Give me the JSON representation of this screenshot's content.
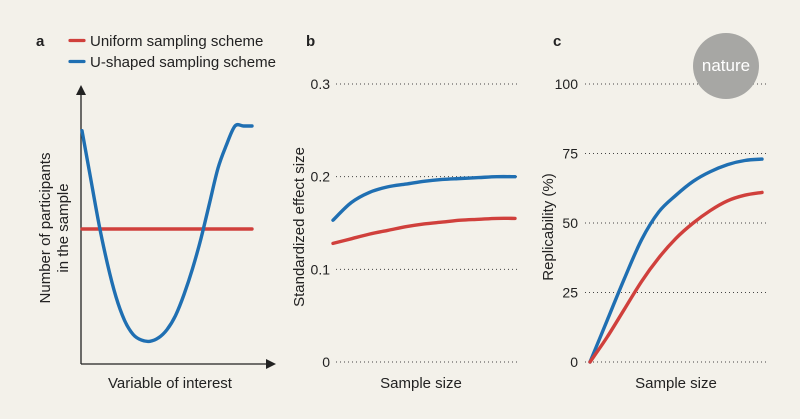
{
  "colors": {
    "uniform": "#d0403c",
    "ushaped": "#1f6fb2",
    "badge": "#a7a7a4",
    "background": "#f3f1ea"
  },
  "badge": {
    "text": "nature"
  },
  "chart_data": [
    {
      "panel": "a",
      "type": "line",
      "xlabel": "Variable of interest",
      "ylabel": [
        "Number of participants",
        "in the sample"
      ],
      "legend": [
        "Uniform sampling scheme",
        "U-shaped sampling scheme"
      ],
      "xlim": [
        0,
        1
      ],
      "ylim": [
        0,
        1
      ],
      "series": [
        {
          "name": "Uniform sampling scheme",
          "color_key": "uniform",
          "x": [
            0,
            1
          ],
          "y": [
            0.5,
            0.5
          ]
        },
        {
          "name": "U-shaped sampling scheme",
          "color_key": "ushaped",
          "x": [
            0,
            0.05,
            0.1,
            0.15,
            0.2,
            0.25,
            0.3,
            0.35,
            0.4,
            0.45,
            0.5,
            0.55,
            0.6,
            0.65,
            0.7,
            0.75,
            0.8,
            0.85,
            0.9,
            0.95,
            1.0
          ],
          "y": [
            0.92,
            0.72,
            0.52,
            0.35,
            0.21,
            0.11,
            0.05,
            0.025,
            0.02,
            0.035,
            0.07,
            0.13,
            0.22,
            0.33,
            0.46,
            0.61,
            0.76,
            0.86,
            0.94,
            0.94,
            0.94
          ]
        }
      ]
    },
    {
      "panel": "b",
      "type": "line",
      "xlabel": "Sample size",
      "ylabel": "Standardized effect size",
      "yticks": [
        0,
        0.1,
        0.2,
        0.3
      ],
      "yticklabels": [
        "0",
        "0.1",
        "0.2",
        "0.3"
      ],
      "ylim": [
        0,
        0.3
      ],
      "xlim": [
        0,
        1
      ],
      "series": [
        {
          "name": "U-shaped sampling scheme",
          "color_key": "ushaped",
          "x": [
            0,
            0.1,
            0.2,
            0.3,
            0.4,
            0.5,
            0.6,
            0.7,
            0.8,
            0.9,
            1.0
          ],
          "y": [
            0.153,
            0.172,
            0.183,
            0.189,
            0.192,
            0.195,
            0.197,
            0.198,
            0.199,
            0.2,
            0.2
          ]
        },
        {
          "name": "Uniform sampling scheme",
          "color_key": "uniform",
          "x": [
            0,
            0.1,
            0.2,
            0.3,
            0.4,
            0.5,
            0.6,
            0.7,
            0.8,
            0.9,
            1.0
          ],
          "y": [
            0.128,
            0.133,
            0.138,
            0.142,
            0.146,
            0.149,
            0.151,
            0.153,
            0.154,
            0.155,
            0.155
          ]
        }
      ]
    },
    {
      "panel": "c",
      "type": "line",
      "xlabel": "Sample size",
      "ylabel": "Replicability (%)",
      "yticks": [
        0,
        25,
        50,
        75,
        100
      ],
      "yticklabels": [
        "0",
        "25",
        "50",
        "75",
        "100"
      ],
      "ylim": [
        0,
        100
      ],
      "xlim": [
        0,
        1
      ],
      "series": [
        {
          "name": "U-shaped sampling scheme",
          "color_key": "ushaped",
          "x": [
            0,
            0.1,
            0.2,
            0.3,
            0.4,
            0.5,
            0.6,
            0.7,
            0.8,
            0.9,
            1.0
          ],
          "y": [
            0,
            15,
            30,
            44,
            54,
            60,
            65,
            68.5,
            71,
            72.5,
            73
          ]
        },
        {
          "name": "Uniform sampling scheme",
          "color_key": "uniform",
          "x": [
            0,
            0.1,
            0.2,
            0.3,
            0.4,
            0.5,
            0.6,
            0.7,
            0.8,
            0.9,
            1.0
          ],
          "y": [
            0,
            9,
            19,
            29,
            37.5,
            44.5,
            50,
            54.5,
            58,
            60,
            61
          ]
        }
      ]
    }
  ]
}
